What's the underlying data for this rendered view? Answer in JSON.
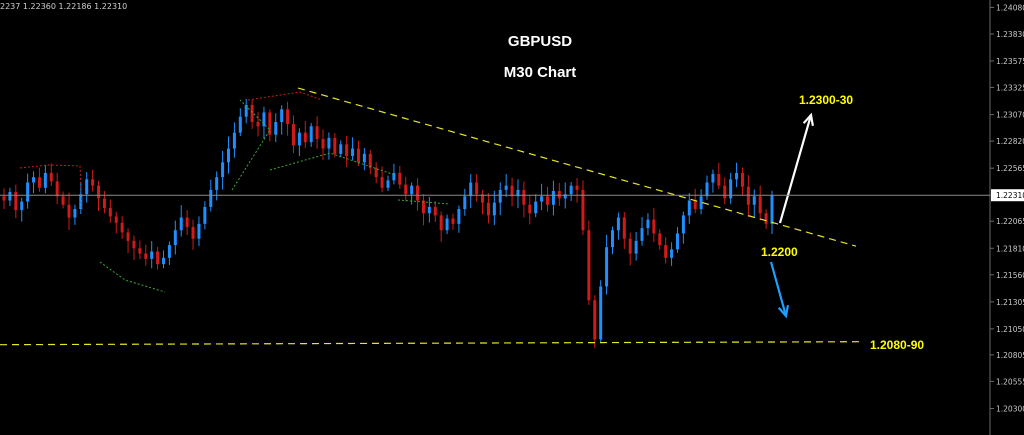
{
  "header": {
    "ohlc_text": "2237 1.22360 1.22186 1.22310"
  },
  "titles": {
    "symbol": "GBPUSD",
    "timeframe": "M30 Chart"
  },
  "annotations": {
    "resistance_target": "1.2300-30",
    "pivot": "1.2200",
    "support_target": "1.2080-90"
  },
  "colors": {
    "background": "#000000",
    "bull_candle": "#1f8fff",
    "bear_candle": "#d11a1a",
    "trendline": "#e6e629",
    "arrow_up": "#ffffff",
    "arrow_down": "#1ea0ff",
    "axis_text": "#c8c8c8",
    "current_price_line": "#8a8a8a"
  },
  "chart_data": {
    "type": "candlestick",
    "title": "GBPUSD",
    "subtitle": "M30 Chart",
    "ylim": [
      1.2005,
      1.2415
    ],
    "y_ticks": [
      "1.24080",
      "1.23830",
      "1.23575",
      "1.23325",
      "1.23070",
      "1.22820",
      "1.22565",
      "1.22310",
      "1.22065",
      "1.21810",
      "1.21560",
      "1.21305",
      "1.21050",
      "1.20805",
      "1.20555",
      "1.20300"
    ],
    "current_price": "1.22310",
    "close_series": [
      1.2226,
      1.2234,
      1.2217,
      1.2225,
      1.2243,
      1.2248,
      1.2238,
      1.2252,
      1.2244,
      1.223,
      1.2222,
      1.221,
      1.2218,
      1.2232,
      1.2246,
      1.224,
      1.2228,
      1.2219,
      1.2211,
      1.2205,
      1.2196,
      1.2188,
      1.2181,
      1.2176,
      1.2171,
      1.2178,
      1.2166,
      1.2172,
      1.2184,
      1.2198,
      1.221,
      1.2201,
      1.219,
      1.2204,
      1.222,
      1.2236,
      1.2248,
      1.2262,
      1.2275,
      1.229,
      1.2305,
      1.2316,
      1.23,
      1.2296,
      1.2309,
      1.2288,
      1.23,
      1.2312,
      1.2298,
      1.2278,
      1.229,
      1.2281,
      1.2296,
      1.2284,
      1.2275,
      1.2285,
      1.227,
      1.2279,
      1.2268,
      1.2275,
      1.2262,
      1.227,
      1.2257,
      1.2248,
      1.2238,
      1.2245,
      1.2252,
      1.2241,
      1.2232,
      1.224,
      1.2226,
      1.2214,
      1.222,
      1.2212,
      1.2198,
      1.2209,
      1.2204,
      1.2218,
      1.223,
      1.2243,
      1.2232,
      1.2224,
      1.2212,
      1.2224,
      1.2236,
      1.224,
      1.223,
      1.2236,
      1.2222,
      1.2214,
      1.2225,
      1.223,
      1.2222,
      1.2235,
      1.2228,
      1.2232,
      1.224,
      1.2236,
      1.2198,
      1.2132,
      1.2095,
      1.2145,
      1.2182,
      1.2198,
      1.221,
      1.219,
      1.2176,
      1.2188,
      1.22,
      1.2208,
      1.2195,
      1.2184,
      1.2172,
      1.218,
      1.2195,
      1.2212,
      1.2226,
      1.2218,
      1.223,
      1.2243,
      1.2251,
      1.224,
      1.2228,
      1.2246,
      1.2252,
      1.2239,
      1.2222,
      1.223,
      1.2214,
      1.2204,
      1.2231
    ],
    "annotations": [
      {
        "text": "1.2300-30",
        "type": "target-up"
      },
      {
        "text": "1.2200",
        "type": "pivot"
      },
      {
        "text": "1.2080-90",
        "type": "target-down"
      }
    ],
    "lines": [
      {
        "type": "descending-trendline",
        "from_price": 1.2332,
        "to_price": 1.2183
      },
      {
        "type": "support",
        "price": 1.2092
      }
    ],
    "grid": false
  }
}
